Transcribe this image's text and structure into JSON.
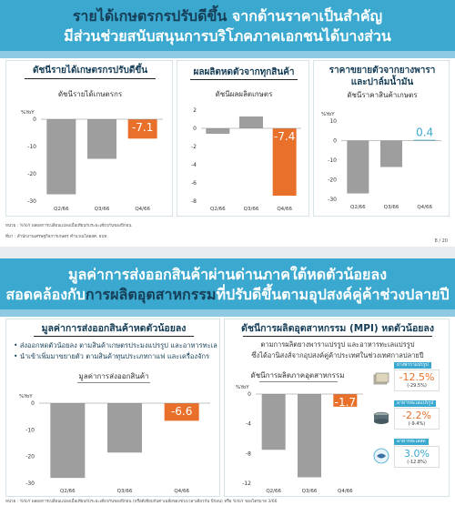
{
  "slide1": {
    "header": {
      "line1_a": "รายได้เกษตรกรปรับดีขึ้น",
      "line1_b": " จากด้านราคาเป็นสำคัญ",
      "line2_a": "มีส่วนช่วยสนับสนุนการบริโภคภาคเอกชนได้บางส่วน"
    },
    "panels": [
      {
        "title": "ดัชนีรายได้เกษตรกรปรับดีขึ้น",
        "subtitle": "ดัชนีรายได้เกษตรกร",
        "unit": "%YoY"
      },
      {
        "title": "ผลผลิตหดตัวจากทุกสินค้า",
        "subtitle": "ดัชนีผลผลิตเกษตร"
      },
      {
        "title": "ราคาขยายตัวจากยางพารา",
        "title2": "และปาล์มน้ำมัน",
        "subtitle": "ดัชนีราคาสินค้าเกษตร",
        "unit": "%YoY"
      }
    ],
    "note1": "หน่วย : %YoY ผลผลการเปลี่ยนแปลงเมื่อเทียบกับระยะเดียวกันของปีก่อน",
    "note2": "ที่มา : สำนักงานเศรษฐกิจการเกษตร คำนวณโดยสศ. ธปท.",
    "page": "8 / 20"
  },
  "slide2": {
    "header": {
      "line1": "มูลค่าการส่งออกสินค้าผ่านด่านภาคใต้หดตัวน้อยลง",
      "line2_a": "สอดคล้องกับ",
      "line2_b": "การผลิตอุตสาหกรรม",
      "line2_c": "ที่ปรับดีขึ้นตามอุปสงค์คู่ค้าช่วงปลายปี"
    },
    "left": {
      "title": "มูลค่าการส่งออกสินค้าหดตัวน้อยลง",
      "bullets": [
        "ส่งออกหดตัวน้อยลง ตามสินค้าเกษตรประมงแปรรูป และอาหารทะเล",
        "นำเข้าเพิ่มมาขยายตัว ตามสินค้าทุนประเภทกาแฟ และเครื่องจักร"
      ],
      "subtitle": "มูลค่าการส่งออกสินค้า"
    },
    "right": {
      "title": "ดัชนีการผลิตอุตสาหกรรม (MPI) หดตัวน้อยลง",
      "line1": "ตามการผลิตยางพาราแปรรูป และอาหารทะเลแปรรูป",
      "line2": "ซึ่งได้อานิสงส์จากอุปสงค์คู่ค้าประเทศในช่วงเทศกาลปลายปี",
      "subtitle": "ดัชนีการผลิตภาคอุตสาหกรรม"
    },
    "side": [
      {
        "label": "ยางพาราแปรรูป",
        "value": "-12.5%",
        "prev": "(-29.5%)",
        "icon": "rubber-sheet-icon",
        "color": "#e8702a"
      },
      {
        "label": "อาหารทะเลแปรรูป",
        "value": "-2.2%",
        "prev": "(-9.4%)",
        "icon": "canned-fish-icon",
        "color": "#e8702a"
      },
      {
        "label": "อาหารทะเลสด",
        "value": "3.0%",
        "prev": "(-12.8%)",
        "icon": "seafood-icon",
        "color": "#3aa8cf"
      }
    ],
    "note": "หน่วย : %YoY ผลผลการเปลี่ยนแปลงเมื่อเทียบกับระยะเดียวกันของปีก่อน (หรือดีเทียบกับค่าเฉลี่ยของช่วงเวลาเดียวกัน ปีก่อน) หรือ %YoY ของไตรมาส 3/66"
  },
  "chart_data": [
    {
      "type": "bar",
      "categories": [
        "Q2/66",
        "Q3/66",
        "Q4/66"
      ],
      "values": [
        -27.5,
        -14.5,
        -7.1
      ],
      "value_labels": [
        "",
        "",
        "-7.1"
      ],
      "ylabel": "%YoY",
      "ylim": [
        -30,
        0
      ],
      "yticks": [
        0,
        -10,
        -20,
        -30
      ],
      "highlight_color": "#e8702a",
      "color": "#9e9e9e"
    },
    {
      "type": "bar",
      "categories": [
        "Q2/66",
        "Q3/66",
        "Q4/66"
      ],
      "values": [
        -0.6,
        1.3,
        -7.4
      ],
      "value_labels": [
        "",
        "",
        "-7.4"
      ],
      "ylim": [
        -8,
        2
      ],
      "yticks": [
        2,
        0,
        -2,
        -4,
        -6,
        -8
      ],
      "highlight_color": "#e8702a",
      "color": "#9e9e9e"
    },
    {
      "type": "bar",
      "categories": [
        "Q2/66",
        "Q3/66",
        "Q4/66"
      ],
      "values": [
        -27,
        -13.5,
        0.4
      ],
      "value_labels": [
        "",
        "",
        "0.4"
      ],
      "ylabel": "%YoY",
      "ylim": [
        -30,
        10
      ],
      "yticks": [
        10,
        0,
        -10,
        -20,
        -30
      ],
      "highlight_color": "#3aa8cf",
      "color": "#9e9e9e"
    },
    {
      "type": "bar",
      "categories": [
        "Q2/66",
        "Q3/66",
        "Q4/66"
      ],
      "values": [
        -28,
        -18.5,
        -6.6
      ],
      "value_labels": [
        "",
        "",
        "-6.6"
      ],
      "ylabel": "%YoY",
      "ylim": [
        -30,
        0
      ],
      "yticks": [
        0,
        -10,
        -20,
        -30
      ],
      "highlight_color": "#e8702a",
      "color": "#9e9e9e"
    },
    {
      "type": "bar",
      "categories": [
        "Q2/66",
        "Q3/66",
        "Q4/66"
      ],
      "values": [
        -7.5,
        -11.2,
        -1.7
      ],
      "value_labels": [
        "",
        "",
        "-1.7"
      ],
      "ylabel": "%YoY",
      "ylim": [
        -12,
        0
      ],
      "yticks": [
        0,
        -4,
        -8,
        -12
      ],
      "highlight_color": "#e8702a",
      "color": "#9e9e9e"
    }
  ]
}
